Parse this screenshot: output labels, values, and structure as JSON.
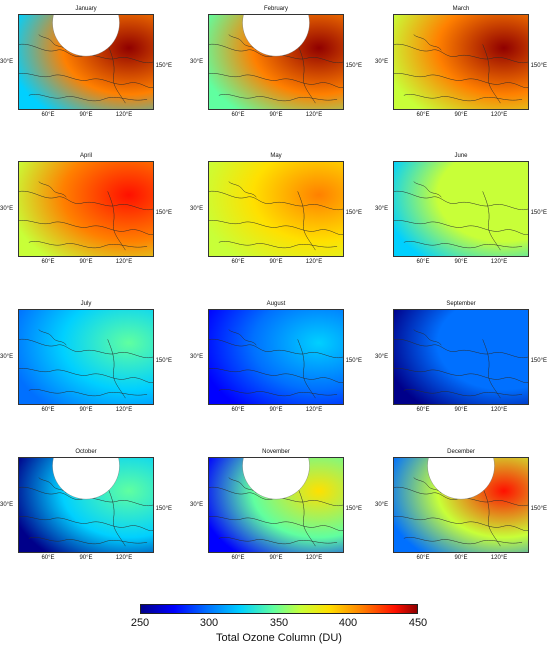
{
  "colors": {
    "scale_stops": [
      "#00008a",
      "#0000ff",
      "#0070ff",
      "#00d0ff",
      "#60ffa0",
      "#c8ff38",
      "#ffe000",
      "#ff8000",
      "#ff1000",
      "#900000"
    ],
    "coastline": "#2a2a2a",
    "no_data": "#ffffff"
  },
  "axes": {
    "lat_label": "30°E",
    "east_label": "150°E",
    "lon_ticks": [
      "60°E",
      "90°E",
      "120°E"
    ]
  },
  "panels": [
    {
      "month": "January",
      "base": 340,
      "hotspot": 450,
      "has_polar_gap": true
    },
    {
      "month": "February",
      "base": 360,
      "hotspot": 460,
      "has_polar_gap": true
    },
    {
      "month": "March",
      "base": 380,
      "hotspot": 450,
      "has_polar_gap": false
    },
    {
      "month": "April",
      "base": 385,
      "hotspot": 430,
      "has_polar_gap": false
    },
    {
      "month": "May",
      "base": 370,
      "hotspot": 400,
      "has_polar_gap": false
    },
    {
      "month": "June",
      "base": 340,
      "hotspot": 360,
      "has_polar_gap": false
    },
    {
      "month": "July",
      "base": 310,
      "hotspot": 345,
      "has_polar_gap": false
    },
    {
      "month": "August",
      "base": 290,
      "hotspot": 320,
      "has_polar_gap": false
    },
    {
      "month": "September",
      "base": 280,
      "hotspot": 305,
      "has_polar_gap": false
    },
    {
      "month": "October",
      "base": 280,
      "hotspot": 340,
      "has_polar_gap": true
    },
    {
      "month": "November",
      "base": 295,
      "hotspot": 380,
      "has_polar_gap": true
    },
    {
      "month": "December",
      "base": 310,
      "hotspot": 420,
      "has_polar_gap": true
    }
  ],
  "colorbar": {
    "ticks": [
      "250",
      "300",
      "350",
      "400",
      "450"
    ],
    "min": 250,
    "max": 450,
    "label": "Total Ozone Column (DU)"
  }
}
